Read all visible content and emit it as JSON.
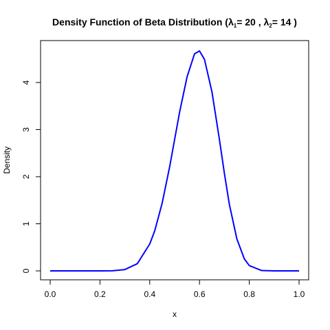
{
  "chart_data": {
    "type": "line",
    "title": {
      "prefix": "Density Function of Beta Distribution (",
      "lambda": "λ",
      "sub1": "1",
      "mid": "= 20 , ",
      "sub2": "2",
      "suffix": "= 14 )"
    },
    "xlabel": "x",
    "ylabel": "Density",
    "xlim": [
      0,
      1
    ],
    "ylim": [
      0,
      4.7
    ],
    "xticks": [
      "0.0",
      "0.2",
      "0.4",
      "0.6",
      "0.8",
      "1.0"
    ],
    "yticks": [
      "0",
      "1",
      "2",
      "3",
      "4"
    ],
    "grid": false,
    "legend": "none",
    "line_color": "#0000ff",
    "series": [
      {
        "x": [
          0.0,
          0.05,
          0.1,
          0.15,
          0.2,
          0.25,
          0.3,
          0.35,
          0.4,
          0.42,
          0.45,
          0.48,
          0.5,
          0.52,
          0.55,
          0.58,
          0.6,
          0.62,
          0.65,
          0.68,
          0.7,
          0.72,
          0.75,
          0.78,
          0.8,
          0.85,
          0.9,
          0.95,
          1.0
        ],
        "values": [
          0.0,
          0.0,
          0.0,
          0.0,
          0.0,
          0.002,
          0.028,
          0.152,
          0.571,
          0.849,
          1.44,
          2.21,
          2.79,
          3.37,
          4.12,
          4.61,
          4.67,
          4.49,
          3.8,
          2.79,
          2.07,
          1.41,
          0.681,
          0.255,
          0.112,
          0.007,
          0.0,
          0.0,
          0.0
        ]
      }
    ]
  }
}
